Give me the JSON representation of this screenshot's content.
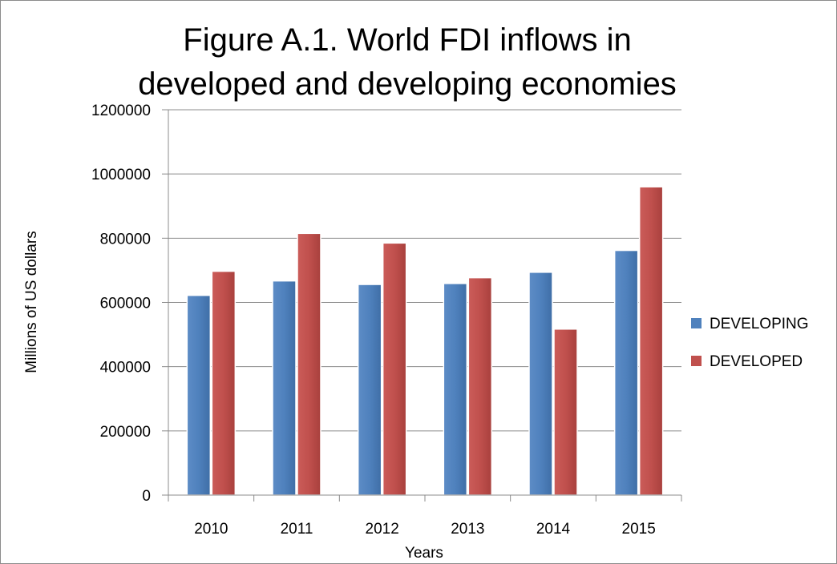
{
  "chart_data": {
    "type": "bar",
    "title": "Figure A.1. World FDI inflows in developed and developing economies",
    "title_lines": [
      "Figure A.1. World FDI inflows in",
      "developed and developing economies"
    ],
    "xlabel": "Years",
    "ylabel": "Millions of US dollars",
    "categories": [
      "2010",
      "2011",
      "2012",
      "2013",
      "2014",
      "2015"
    ],
    "ylim": [
      0,
      1200000
    ],
    "yticks": [
      "0",
      "200000",
      "400000",
      "600000",
      "800000",
      "1000000",
      "1200000"
    ],
    "ytick_values": [
      0,
      200000,
      400000,
      600000,
      800000,
      1000000,
      1200000
    ],
    "grid": true,
    "legend_position": "right",
    "series": [
      {
        "name": "DEVELOPING",
        "color": "#4f81bd",
        "values": [
          622000,
          667000,
          656000,
          659000,
          694000,
          762000
        ]
      },
      {
        "name": "DEVELOPED",
        "color": "#c0504d",
        "values": [
          697000,
          815000,
          785000,
          677000,
          517000,
          960000
        ]
      }
    ]
  }
}
